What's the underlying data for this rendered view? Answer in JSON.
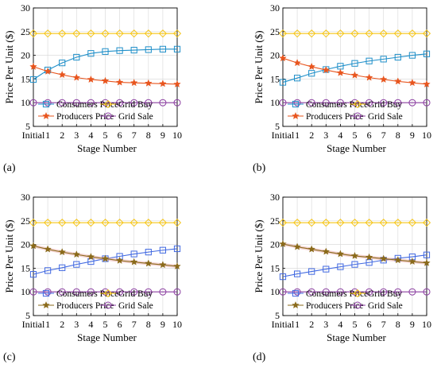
{
  "colors": {
    "consumers": "#1f8fc9",
    "producers": "#e8551e",
    "grid_buy": "#f5c517",
    "grid_sale": "#8b3ea1",
    "producers_alt": "#8a6a1a",
    "consumers_alt": "#4169e1",
    "band": "#e8a0a0"
  },
  "chart_data": [
    {
      "type": "line",
      "panel_label": "(a)",
      "xlabel": "Stage Number",
      "ylabel": "Price Per Unit ($)",
      "categories": [
        "Initial",
        "1",
        "2",
        "3",
        "4",
        "5",
        "6",
        "7",
        "8",
        "9",
        "10"
      ],
      "ylim": [
        5,
        30
      ],
      "yticks": [
        "5",
        "10",
        "15",
        "20",
        "25",
        "30"
      ],
      "grid": true,
      "legend_position": "bottom",
      "series": [
        {
          "name": "Consumers Price",
          "marker": "square",
          "color_key": "consumers",
          "values": [
            14.9,
            16.9,
            18.4,
            19.6,
            20.4,
            20.8,
            21.0,
            21.1,
            21.2,
            21.3,
            21.3
          ]
        },
        {
          "name": "Grid Buy",
          "marker": "diamond",
          "color_key": "grid_buy",
          "values": [
            24.6,
            24.6,
            24.6,
            24.6,
            24.6,
            24.6,
            24.6,
            24.6,
            24.6,
            24.6,
            24.6
          ]
        },
        {
          "name": "Producers Price",
          "marker": "star",
          "color_key": "producers",
          "values": [
            17.6,
            16.6,
            15.9,
            15.3,
            14.9,
            14.6,
            14.3,
            14.2,
            14.1,
            14.0,
            13.9
          ]
        },
        {
          "name": "Grid Sale",
          "marker": "circle",
          "color_key": "grid_sale",
          "values": [
            10,
            10,
            10,
            10,
            10,
            10,
            10,
            10,
            10,
            10,
            10
          ]
        }
      ]
    },
    {
      "type": "line",
      "panel_label": "(b)",
      "xlabel": "Stage Number",
      "ylabel": "Price Per Unit ($)",
      "categories": [
        "Initial",
        "1",
        "2",
        "3",
        "4",
        "5",
        "6",
        "7",
        "8",
        "9",
        "10"
      ],
      "ylim": [
        5,
        30
      ],
      "yticks": [
        "5",
        "10",
        "15",
        "20",
        "25",
        "30"
      ],
      "grid": true,
      "legend_position": "bottom",
      "series": [
        {
          "name": "Consumers Price",
          "marker": "square",
          "color_key": "consumers",
          "values": [
            14.3,
            15.2,
            16.2,
            17.0,
            17.7,
            18.3,
            18.8,
            19.2,
            19.6,
            20.0,
            20.3
          ]
        },
        {
          "name": "Grid Buy",
          "marker": "diamond",
          "color_key": "grid_buy",
          "values": [
            24.6,
            24.6,
            24.6,
            24.6,
            24.6,
            24.6,
            24.6,
            24.6,
            24.6,
            24.6,
            24.6
          ]
        },
        {
          "name": "Producers Price",
          "marker": "star",
          "color_key": "producers",
          "values": [
            19.4,
            18.4,
            17.6,
            16.9,
            16.3,
            15.8,
            15.3,
            14.9,
            14.5,
            14.2,
            13.9
          ]
        },
        {
          "name": "Grid Sale",
          "marker": "circle",
          "color_key": "grid_sale",
          "values": [
            10,
            10,
            10,
            10,
            10,
            10,
            10,
            10,
            10,
            10,
            10
          ]
        }
      ]
    },
    {
      "type": "line",
      "panel_label": "(c)",
      "xlabel": "Stage Number",
      "ylabel": "Price Per Unit ($)",
      "categories": [
        "Initial",
        "1",
        "2",
        "3",
        "4",
        "5",
        "6",
        "7",
        "8",
        "9",
        "10"
      ],
      "ylim": [
        5,
        30
      ],
      "yticks": [
        "5",
        "10",
        "15",
        "20",
        "25",
        "30"
      ],
      "grid": true,
      "legend_position": "bottom",
      "series": [
        {
          "name": "Consumers Price",
          "marker": "square",
          "color_key": "consumers_alt",
          "values": [
            13.7,
            14.5,
            15.1,
            15.8,
            16.4,
            17.0,
            17.5,
            18.0,
            18.4,
            18.8,
            19.1
          ]
        },
        {
          "name": "Grid Buy",
          "marker": "diamond",
          "color_key": "grid_buy",
          "values": [
            24.6,
            24.6,
            24.6,
            24.6,
            24.6,
            24.6,
            24.6,
            24.6,
            24.6,
            24.6,
            24.6
          ]
        },
        {
          "name": "Producers Price",
          "marker": "star",
          "color_key": "producers_alt",
          "band": true,
          "values": [
            19.7,
            19.0,
            18.4,
            17.9,
            17.4,
            17.0,
            16.6,
            16.3,
            16.0,
            15.7,
            15.4
          ]
        },
        {
          "name": "Grid Sale",
          "marker": "circle",
          "color_key": "grid_sale",
          "values": [
            10,
            10,
            10,
            10,
            10,
            10,
            10,
            10,
            10,
            10,
            10
          ]
        }
      ]
    },
    {
      "type": "line",
      "panel_label": "(d)",
      "xlabel": "Stage Number",
      "ylabel": "Price Per Unit ($)",
      "categories": [
        "Initial",
        "1",
        "2",
        "3",
        "4",
        "5",
        "6",
        "7",
        "8",
        "9",
        "10"
      ],
      "ylim": [
        5,
        30
      ],
      "yticks": [
        "5",
        "10",
        "15",
        "20",
        "25",
        "30"
      ],
      "grid": true,
      "legend_position": "bottom",
      "series": [
        {
          "name": "Consumers Price",
          "marker": "square",
          "color_key": "consumers_alt",
          "values": [
            13.2,
            13.8,
            14.3,
            14.8,
            15.3,
            15.8,
            16.2,
            16.7,
            17.1,
            17.4,
            17.8
          ]
        },
        {
          "name": "Grid Buy",
          "marker": "diamond",
          "color_key": "grid_buy",
          "values": [
            24.6,
            24.6,
            24.6,
            24.6,
            24.6,
            24.6,
            24.6,
            24.6,
            24.6,
            24.6,
            24.6
          ]
        },
        {
          "name": "Producers Price",
          "marker": "star",
          "color_key": "producers_alt",
          "band": true,
          "values": [
            20.1,
            19.5,
            19.0,
            18.5,
            18.0,
            17.6,
            17.3,
            17.0,
            16.7,
            16.4,
            16.1
          ]
        },
        {
          "name": "Grid Sale",
          "marker": "circle",
          "color_key": "grid_sale",
          "values": [
            10,
            10,
            10,
            10,
            10,
            10,
            10,
            10,
            10,
            10,
            10
          ]
        }
      ]
    }
  ]
}
